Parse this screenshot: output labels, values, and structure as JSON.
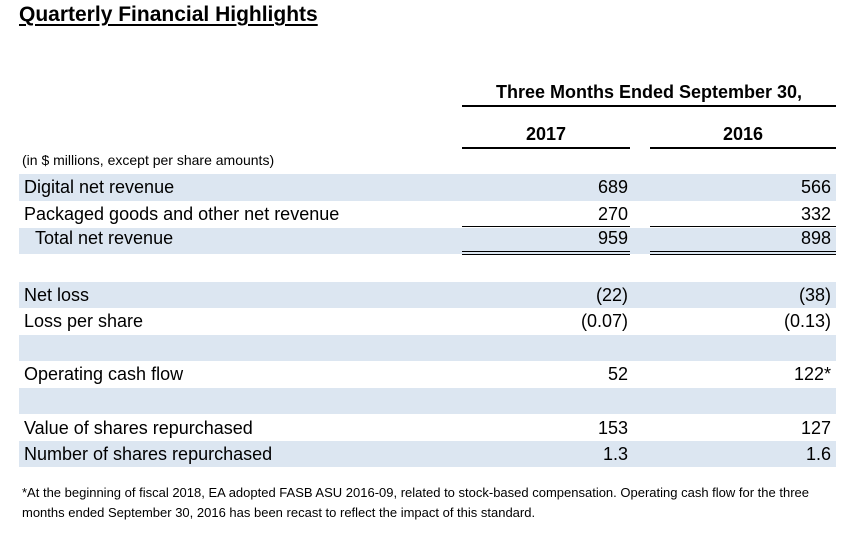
{
  "title": "Quarterly Financial Highlights",
  "period_header": "Three Months Ended September 30,",
  "years": [
    "2017",
    "2016"
  ],
  "units_note": "(in $ millions, except per share amounts)",
  "rows": {
    "digital_net_revenue": {
      "label": "Digital net revenue",
      "v2017": "689",
      "v2016": "566"
    },
    "packaged_goods": {
      "label": "Packaged goods and other net revenue",
      "v2017": "270",
      "v2016": "332"
    },
    "total_net_revenue": {
      "label": "Total net revenue",
      "v2017": "959",
      "v2016": "898"
    },
    "net_loss": {
      "label": "Net loss",
      "v2017": "(22)",
      "v2016": "(38)"
    },
    "loss_per_share": {
      "label": "Loss per share",
      "v2017": "(0.07)",
      "v2016": "(0.13)"
    },
    "operating_cash_flow": {
      "label": "Operating cash flow",
      "v2017": "52",
      "v2016": "122*"
    },
    "value_shares_repurchased": {
      "label": "Value of shares repurchased",
      "v2017": "153",
      "v2016": "127"
    },
    "number_shares_repurchased": {
      "label": "Number of shares repurchased",
      "v2017": "1.3",
      "v2016": "1.6"
    }
  },
  "footnote": "*At the beginning of fiscal 2018, EA adopted FASB ASU 2016-09, related to stock-based compensation. Operating cash flow for the three months ended September 30, 2016 has been recast to reflect the impact of this standard.",
  "colors": {
    "band": "#dce6f1"
  }
}
